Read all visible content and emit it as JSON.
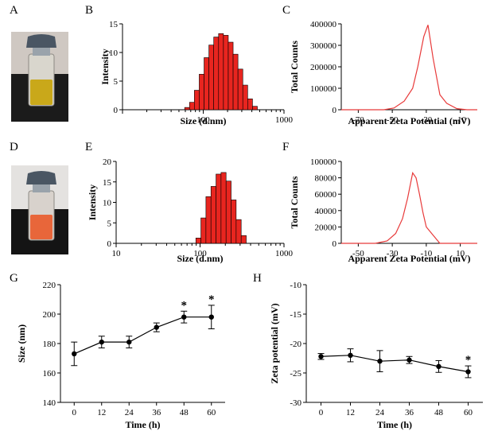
{
  "panel_labels": [
    "A",
    "B",
    "C",
    "D",
    "E",
    "F",
    "G",
    "H"
  ],
  "colors": {
    "histogram_fill": "#e8251f",
    "zeta_line": "#e83a3a",
    "axis": "#000000",
    "vial_liquid_A": "#c9a81a",
    "vial_liquid_D": "#e8663a",
    "vial_cap": "#4a5663"
  },
  "photos": [
    {
      "panel": "A",
      "description_icon": "vial-photo-icon"
    },
    {
      "panel": "D",
      "description_icon": "vial-photo-icon"
    }
  ],
  "chart_data": [
    {
      "panel": "B",
      "type": "bar",
      "xlabel": "Size (d.nm)",
      "ylabel": "Intensity",
      "xscale": "log",
      "xlim": [
        10,
        1000
      ],
      "ylim": [
        0,
        15
      ],
      "xticks": [
        "",
        "100",
        "1000"
      ],
      "yticks": [
        "0",
        "5",
        "10",
        "15"
      ],
      "bins_log10": [
        1.8,
        1.86,
        1.92,
        1.98,
        2.04,
        2.1,
        2.16,
        2.22,
        2.28,
        2.34,
        2.4,
        2.46,
        2.52,
        2.58,
        2.64,
        2.7
      ],
      "values": [
        0.4,
        1.3,
        3.4,
        6.2,
        9.1,
        11.3,
        12.7,
        13.3,
        13.0,
        11.8,
        9.7,
        7.1,
        4.3,
        1.9,
        0.6,
        0.0
      ]
    },
    {
      "panel": "C",
      "type": "line",
      "xlabel": "Apparent Zeta Potential (mV)",
      "ylabel": "Total Counts",
      "xlim": [
        -80,
        0
      ],
      "ylim": [
        0,
        400000
      ],
      "xticks": [
        "-70",
        "-50",
        "-30",
        "-10"
      ],
      "yticks": [
        "0",
        "100000",
        "200000",
        "300000",
        "400000"
      ],
      "x": [
        -80,
        -55,
        -49,
        -43,
        -38,
        -35,
        -31.5,
        -29,
        -26,
        -22,
        -18,
        -12,
        -6,
        0
      ],
      "y": [
        0,
        0,
        8000,
        40000,
        100000,
        200000,
        340000,
        395000,
        240000,
        70000,
        30000,
        5000,
        0,
        0
      ]
    },
    {
      "panel": "E",
      "type": "bar",
      "xlabel": "Size (d.nm)",
      "ylabel": "Intensity",
      "xscale": "log",
      "xlim": [
        10,
        1000
      ],
      "ylim": [
        0,
        20
      ],
      "xticks": [
        "10",
        "100",
        "1000"
      ],
      "yticks": [
        "0",
        "5",
        "10",
        "15",
        "20"
      ],
      "bins_log10": [
        1.98,
        2.04,
        2.1,
        2.16,
        2.22,
        2.28,
        2.34,
        2.4,
        2.46,
        2.52
      ],
      "values": [
        1.3,
        6.2,
        11.4,
        13.9,
        16.9,
        17.3,
        15.2,
        10.6,
        5.8,
        1.9
      ]
    },
    {
      "panel": "F",
      "type": "line",
      "xlabel": "Apparent Zeta Potential (mV)",
      "ylabel": "Total Counts",
      "xlim": [
        -60,
        20
      ],
      "ylim": [
        0,
        100000
      ],
      "xticks": [
        "-50",
        "-30",
        "-10",
        "10"
      ],
      "yticks": [
        "0",
        "20000",
        "40000",
        "60000",
        "80000",
        "100000"
      ],
      "x": [
        -60,
        -40,
        -33,
        -28,
        -24,
        -21,
        -18,
        -16,
        -14,
        -12,
        -10,
        -6,
        -2,
        0,
        20
      ],
      "y": [
        0,
        0,
        3000,
        12000,
        30000,
        55000,
        86000,
        80000,
        60000,
        38000,
        20000,
        10000,
        0,
        0,
        0
      ]
    },
    {
      "panel": "G",
      "type": "line",
      "xlabel": "Time (h)",
      "ylabel": "Size (nm)",
      "xlim": [
        -6,
        66
      ],
      "ylim": [
        140,
        220
      ],
      "xticks": [
        "0",
        "12",
        "24",
        "36",
        "48",
        "60"
      ],
      "yticks": [
        "140",
        "160",
        "180",
        "200",
        "220"
      ],
      "x": [
        0,
        12,
        24,
        36,
        48,
        60
      ],
      "y": [
        173,
        181,
        181,
        191,
        198,
        198
      ],
      "err": [
        8,
        4,
        4,
        3,
        4,
        8
      ],
      "stars": [
        false,
        false,
        false,
        false,
        true,
        true
      ],
      "star_label": "*"
    },
    {
      "panel": "H",
      "type": "line",
      "xlabel": "Time (h)",
      "ylabel": "Zeta potential (mV)",
      "xlim": [
        -6,
        66
      ],
      "ylim": [
        -30,
        -10
      ],
      "xticks": [
        "0",
        "12",
        "24",
        "36",
        "48",
        "60"
      ],
      "yticks": [
        "-10",
        "-15",
        "-20",
        "-25",
        "-30"
      ],
      "x": [
        0,
        12,
        24,
        36,
        48,
        60
      ],
      "y": [
        -22.2,
        -22.0,
        -23.0,
        -22.8,
        -23.9,
        -24.8
      ],
      "err": [
        0.5,
        1.1,
        1.8,
        0.6,
        1.0,
        1.0
      ],
      "stars": [
        false,
        false,
        false,
        false,
        false,
        true
      ],
      "star_label": "*"
    }
  ]
}
